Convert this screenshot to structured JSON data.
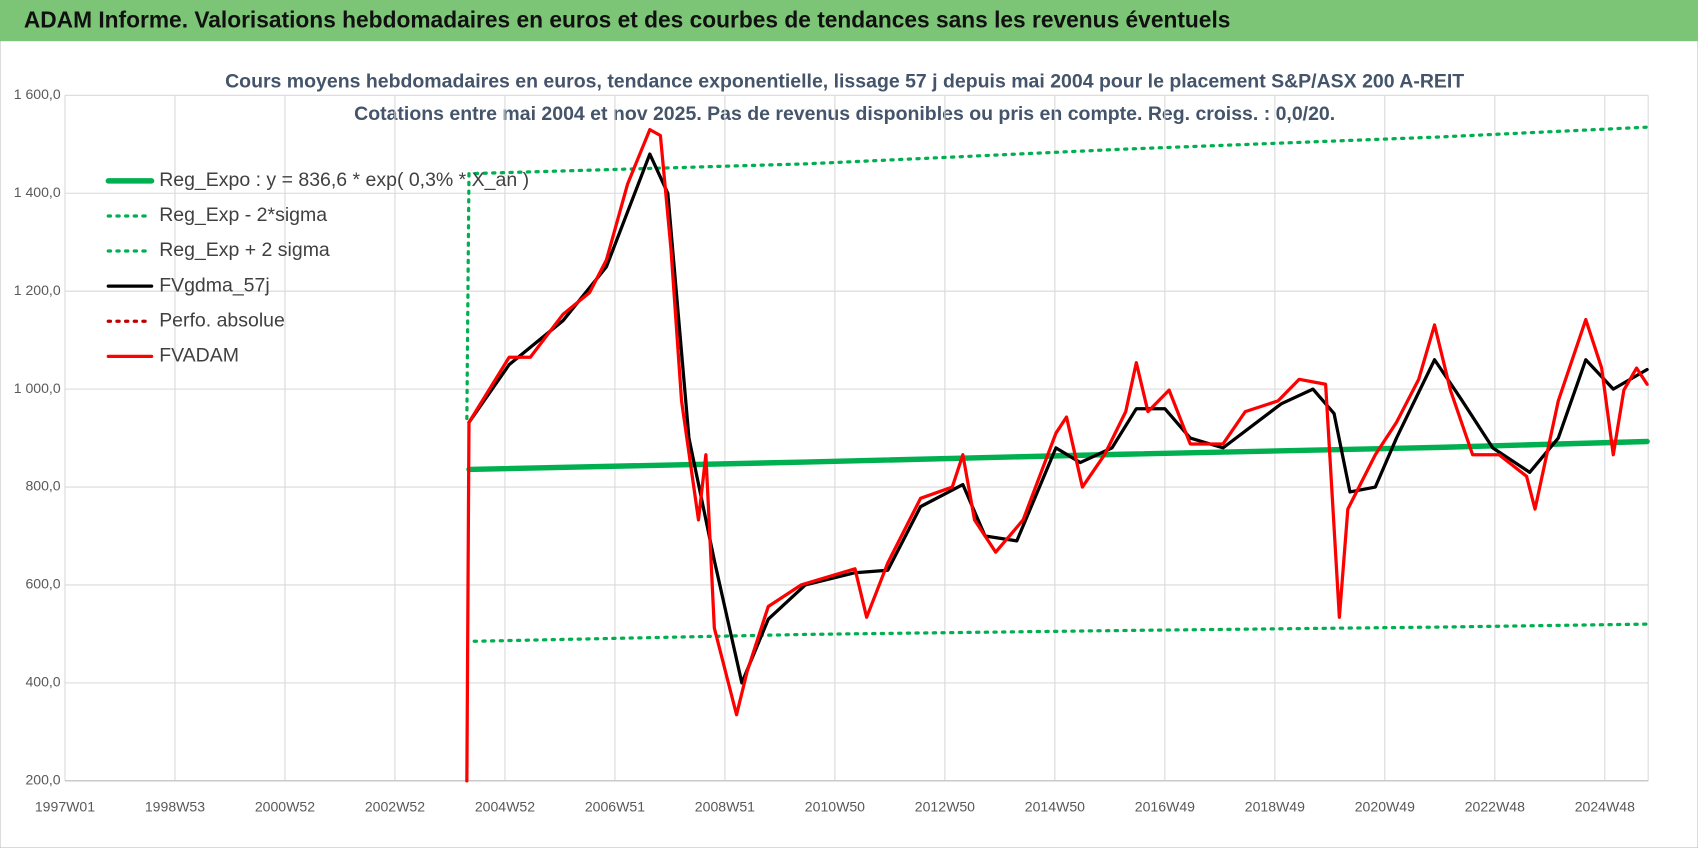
{
  "header": {
    "title": "ADAM Informe. Valorisations hebdomadaires en euros et des courbes de tendances sans les revenus éventuels"
  },
  "chart_data": {
    "type": "line",
    "title": "Cours moyens hebdomadaires en euros, tendance exponentielle, lissage 57 j depuis mai 2004 pour le placement S&P/ASX 200 A-REIT",
    "subtitle": "Cotations entre mai 2004 et nov 2025. Pas de revenus disponibles ou pris en compte. Reg. croiss. : 0,0/20.",
    "xlim": [
      0,
      1497
    ],
    "xticks": [
      {
        "value": 0,
        "label": "1997W01"
      },
      {
        "value": 104,
        "label": "1998W53"
      },
      {
        "value": 208,
        "label": "2000W52"
      },
      {
        "value": 312,
        "label": "2002W52"
      },
      {
        "value": 416,
        "label": "2004W52"
      },
      {
        "value": 520,
        "label": "2006W51"
      },
      {
        "value": 624,
        "label": "2008W51"
      },
      {
        "value": 728,
        "label": "2010W50"
      },
      {
        "value": 832,
        "label": "2012W50"
      },
      {
        "value": 936,
        "label": "2014W50"
      },
      {
        "value": 1040,
        "label": "2016W49"
      },
      {
        "value": 1144,
        "label": "2018W49"
      },
      {
        "value": 1248,
        "label": "2020W49"
      },
      {
        "value": 1352,
        "label": "2022W48"
      },
      {
        "value": 1456,
        "label": "2024W48"
      }
    ],
    "ylim": [
      200,
      1600
    ],
    "yticks": [
      {
        "value": 200,
        "label": "200,0"
      },
      {
        "value": 400,
        "label": "400,0"
      },
      {
        "value": 600,
        "label": "600,0"
      },
      {
        "value": 800,
        "label": "800,0"
      },
      {
        "value": 1000,
        "label": "1 000,0"
      },
      {
        "value": 1200,
        "label": "1 200,0"
      },
      {
        "value": 1400,
        "label": "1 400,0"
      },
      {
        "value": 1600,
        "label": "1 600,0"
      }
    ],
    "grid": true,
    "legend": "upper left",
    "series": [
      {
        "name": "Reg_Expo : y = 836,6 * exp( 0,3% * X_an )",
        "color": "#00b050",
        "dash": "solid",
        "width": 5,
        "x": [
          382,
          700,
          1000,
          1300,
          1496
        ],
        "values": [
          836,
          851,
          867,
          881,
          893
        ]
      },
      {
        "name": "Reg_Exp - 2*sigma",
        "color": "#00b050",
        "dash": "dotted",
        "width": 3,
        "x": [
          387,
          700,
          1000,
          1300,
          1496
        ],
        "values": [
          485,
          499,
          507,
          514,
          520
        ]
      },
      {
        "name": "Reg_Exp + 2 sigma",
        "color": "#00b050",
        "dash": "dotted",
        "width": 3,
        "x": [
          380,
          382,
          700,
          1000,
          1300,
          1496
        ],
        "values": [
          940,
          1440,
          1460,
          1490,
          1515,
          1535
        ]
      },
      {
        "name": "FVgdma_57j",
        "color": "#000000",
        "dash": "solid",
        "width": 3,
        "x": [
          382,
          420,
          471,
          512,
          553,
          570,
          590,
          614,
          640,
          665,
          700,
          747,
          778,
          809,
          849,
          870,
          900,
          937,
          960,
          990,
          1013,
          1040,
          1064,
          1095,
          1150,
          1180,
          1200,
          1215,
          1239,
          1259,
          1295,
          1320,
          1350,
          1385,
          1412,
          1438,
          1464,
          1496
        ],
        "values": [
          932,
          1050,
          1140,
          1250,
          1480,
          1400,
          900,
          650,
          400,
          530,
          600,
          625,
          630,
          760,
          805,
          700,
          690,
          880,
          850,
          880,
          960,
          960,
          900,
          880,
          970,
          1000,
          950,
          790,
          800,
          900,
          1060,
          980,
          880,
          830,
          900,
          1060,
          1000,
          1040
        ]
      },
      {
        "name": "Perfo. absolue",
        "color": "#c00000",
        "dash": "dotted",
        "width": 3,
        "x": [],
        "values": []
      },
      {
        "name": "FVADAM",
        "color": "#ff0000",
        "dash": "solid",
        "width": 3,
        "x": [
          380,
          382,
          420,
          440,
          471,
          496,
          512,
          532,
          553,
          563,
          573,
          583,
          599,
          606,
          614,
          635,
          645,
          665,
          696,
          747,
          758,
          778,
          809,
          839,
          849,
          860,
          880,
          906,
          937,
          947,
          962,
          983,
          1003,
          1013,
          1024,
          1044,
          1064,
          1095,
          1116,
          1147,
          1167,
          1192,
          1205,
          1213,
          1239,
          1259,
          1280,
          1295,
          1310,
          1331,
          1356,
          1382,
          1390,
          1412,
          1438,
          1453,
          1464,
          1474,
          1486,
          1496
        ],
        "values": [
          200,
          932,
          1065,
          1065,
          1153,
          1197,
          1264,
          1419,
          1530,
          1518,
          1286,
          976,
          733,
          866,
          512,
          335,
          423,
          556,
          600,
          633,
          534,
          645,
          777,
          800,
          866,
          733,
          667,
          733,
          910,
          943,
          800,
          866,
          954,
          1054,
          954,
          998,
          888,
          888,
          954,
          976,
          1020,
          1010,
          534,
          755,
          866,
          932,
          1020,
          1131,
          998,
          866,
          866,
          822,
          755,
          976,
          1142,
          1043,
          866,
          998,
          1043,
          1010
        ]
      }
    ]
  }
}
